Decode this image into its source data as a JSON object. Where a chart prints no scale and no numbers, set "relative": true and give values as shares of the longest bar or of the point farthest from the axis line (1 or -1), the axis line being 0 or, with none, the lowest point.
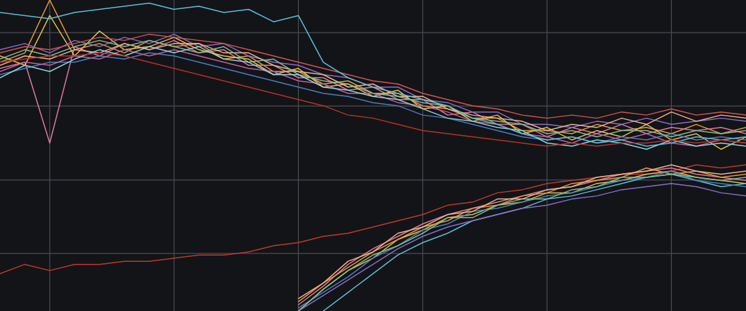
{
  "chart_data": {
    "type": "line",
    "relative": true,
    "grid": true,
    "categories": [
      null,
      null,
      null,
      null,
      null,
      null,
      null,
      null,
      null,
      null,
      null,
      null,
      null,
      null,
      null,
      null,
      null,
      null,
      null,
      null,
      null,
      null,
      null,
      null,
      null,
      null,
      null,
      null,
      null,
      null,
      null
    ],
    "series": [
      {
        "color": "#e89a3c",
        "values": [
          0.8,
          0.83,
          1.0,
          0.84,
          0.86,
          0.83,
          0.87,
          0.85,
          0.86,
          0.81,
          0.82,
          0.77,
          0.77,
          0.73,
          0.74,
          0.7,
          0.7,
          0.66,
          0.65,
          0.62,
          0.62,
          0.58,
          0.58,
          0.57,
          0.6,
          0.58,
          0.59,
          0.57,
          0.6,
          0.57,
          0.59
        ]
      },
      {
        "color": "#e07aa0",
        "values": [
          0.78,
          0.8,
          0.54,
          0.85,
          0.82,
          0.86,
          0.84,
          0.87,
          0.83,
          0.84,
          0.79,
          0.79,
          0.75,
          0.75,
          0.71,
          0.72,
          0.68,
          0.68,
          0.63,
          0.64,
          0.6,
          0.6,
          0.56,
          0.59,
          0.57,
          0.6,
          0.57,
          0.59,
          0.58,
          0.59,
          0.57
        ]
      },
      {
        "color": "#e6c04a",
        "values": [
          0.82,
          0.79,
          0.95,
          0.82,
          0.9,
          0.84,
          0.85,
          0.88,
          0.84,
          0.82,
          0.81,
          0.76,
          0.78,
          0.72,
          0.73,
          0.69,
          0.71,
          0.65,
          0.66,
          0.61,
          0.63,
          0.57,
          0.59,
          0.55,
          0.58,
          0.56,
          0.6,
          0.55,
          0.57,
          0.52,
          0.56
        ]
      },
      {
        "color": "#4a7fc1",
        "values": [
          0.76,
          0.78,
          0.8,
          0.8,
          0.82,
          0.81,
          0.83,
          0.82,
          0.8,
          0.78,
          0.76,
          0.74,
          0.72,
          0.7,
          0.69,
          0.67,
          0.66,
          0.63,
          0.62,
          0.6,
          0.58,
          0.56,
          0.55,
          0.56,
          0.54,
          0.56,
          0.55,
          0.57,
          0.55,
          0.56,
          0.55
        ]
      },
      {
        "color": "#8a6fc9",
        "values": [
          0.84,
          0.86,
          0.83,
          0.87,
          0.85,
          0.88,
          0.86,
          0.89,
          0.85,
          0.86,
          0.82,
          0.8,
          0.79,
          0.76,
          0.75,
          0.72,
          0.72,
          0.68,
          0.67,
          0.64,
          0.64,
          0.6,
          0.6,
          0.59,
          0.61,
          0.6,
          0.62,
          0.6,
          0.61,
          0.62,
          0.61
        ]
      },
      {
        "color": "#f0b48a",
        "values": [
          0.79,
          0.82,
          0.81,
          0.84,
          0.83,
          0.86,
          0.84,
          0.86,
          0.86,
          0.83,
          0.83,
          0.79,
          0.77,
          0.76,
          0.72,
          0.73,
          0.69,
          0.69,
          0.65,
          0.63,
          0.62,
          0.61,
          0.58,
          0.6,
          0.59,
          0.62,
          0.6,
          0.64,
          0.61,
          0.63,
          0.62
        ]
      },
      {
        "color": "#7fbf8f",
        "values": [
          0.81,
          0.84,
          0.82,
          0.85,
          0.87,
          0.85,
          0.87,
          0.85,
          0.83,
          0.85,
          0.8,
          0.81,
          0.76,
          0.74,
          0.73,
          0.7,
          0.69,
          0.67,
          0.66,
          0.62,
          0.61,
          0.6,
          0.57,
          0.58,
          0.56,
          0.58,
          0.58,
          0.56,
          0.58,
          0.57,
          0.58
        ]
      },
      {
        "color": "#c55fa0",
        "values": [
          0.77,
          0.8,
          0.79,
          0.82,
          0.81,
          0.84,
          0.82,
          0.84,
          0.82,
          0.8,
          0.78,
          0.77,
          0.74,
          0.73,
          0.7,
          0.7,
          0.67,
          0.66,
          0.64,
          0.61,
          0.6,
          0.57,
          0.56,
          0.54,
          0.57,
          0.55,
          0.57,
          0.54,
          0.53,
          0.55,
          0.54
        ]
      },
      {
        "color": "#8fd3e0",
        "values": [
          0.75,
          0.79,
          0.77,
          0.81,
          0.84,
          0.82,
          0.85,
          0.83,
          0.85,
          0.81,
          0.8,
          0.76,
          0.76,
          0.72,
          0.71,
          0.69,
          0.68,
          0.65,
          0.62,
          0.61,
          0.59,
          0.58,
          0.54,
          0.53,
          0.55,
          0.54,
          0.52,
          0.55,
          0.53,
          0.54,
          0.53
        ]
      },
      {
        "color": "#d9534f",
        "values": [
          0.83,
          0.85,
          0.84,
          0.86,
          0.88,
          0.87,
          0.89,
          0.88,
          0.87,
          0.86,
          0.84,
          0.82,
          0.8,
          0.78,
          0.76,
          0.74,
          0.73,
          0.7,
          0.68,
          0.66,
          0.65,
          0.63,
          0.62,
          0.63,
          0.62,
          0.64,
          0.63,
          0.65,
          0.63,
          0.64,
          0.63
        ]
      },
      {
        "color": "#5bc0d8",
        "values": [
          0.96,
          0.95,
          0.94,
          0.96,
          0.97,
          0.98,
          0.99,
          0.97,
          0.98,
          0.96,
          0.97,
          0.93,
          0.95,
          0.8,
          0.75,
          0.72,
          0.7,
          0.68,
          0.66,
          0.62,
          0.6,
          0.57,
          0.55,
          0.56,
          0.54,
          0.55,
          0.53,
          0.54,
          0.56,
          0.55,
          0.56
        ]
      },
      {
        "color": "#b83227",
        "values": [
          0.8,
          0.81,
          0.82,
          0.82,
          0.83,
          0.82,
          0.8,
          0.78,
          0.76,
          0.74,
          0.72,
          0.7,
          0.68,
          0.66,
          0.63,
          0.62,
          0.6,
          0.58,
          0.57,
          0.56,
          0.55,
          0.54,
          0.53,
          0.54,
          0.53,
          0.54,
          0.54,
          0.55,
          0.54,
          0.55,
          0.54
        ]
      },
      {
        "color": "#c0392b",
        "values": [
          0.12,
          0.15,
          0.13,
          0.15,
          0.15,
          0.16,
          0.16,
          0.17,
          0.18,
          0.18,
          0.19,
          0.21,
          0.22,
          0.24,
          0.25,
          0.27,
          0.29,
          0.31,
          0.34,
          0.35,
          0.38,
          0.39,
          0.41,
          0.42,
          0.43,
          0.44,
          0.44,
          0.45,
          0.47,
          0.46,
          0.47
        ]
      },
      {
        "color": "#e6c04a",
        "values": [
          null,
          null,
          null,
          null,
          null,
          null,
          null,
          null,
          null,
          null,
          null,
          null,
          0.0,
          0.07,
          0.13,
          0.17,
          0.23,
          0.26,
          0.3,
          0.31,
          0.34,
          0.35,
          0.38,
          0.38,
          0.41,
          0.42,
          0.44,
          0.45,
          0.43,
          0.42,
          0.41
        ]
      },
      {
        "color": "#5bc0d8",
        "values": [
          null,
          null,
          null,
          null,
          null,
          null,
          null,
          null,
          null,
          null,
          null,
          null,
          null,
          0.0,
          0.06,
          0.12,
          0.18,
          0.22,
          0.25,
          0.29,
          0.31,
          0.33,
          0.36,
          0.37,
          0.39,
          0.41,
          0.43,
          0.44,
          0.42,
          0.4,
          0.41
        ]
      },
      {
        "color": "#e07aa0",
        "values": [
          null,
          null,
          null,
          null,
          null,
          null,
          null,
          null,
          null,
          null,
          null,
          null,
          0.02,
          0.08,
          0.15,
          0.2,
          0.24,
          0.28,
          0.31,
          0.33,
          0.35,
          0.37,
          0.39,
          0.4,
          0.42,
          0.44,
          0.45,
          0.46,
          0.44,
          0.43,
          0.42
        ]
      },
      {
        "color": "#8a6fc9",
        "values": [
          null,
          null,
          null,
          null,
          null,
          null,
          null,
          null,
          null,
          null,
          null,
          null,
          0.0,
          0.05,
          0.1,
          0.15,
          0.2,
          0.24,
          0.27,
          0.29,
          0.31,
          0.33,
          0.34,
          0.36,
          0.37,
          0.39,
          0.4,
          0.41,
          0.4,
          0.38,
          0.37
        ]
      },
      {
        "color": "#e89a3c",
        "values": [
          null,
          null,
          null,
          null,
          null,
          null,
          null,
          null,
          null,
          null,
          null,
          null,
          0.03,
          0.09,
          0.14,
          0.19,
          0.23,
          0.27,
          0.29,
          0.33,
          0.34,
          0.37,
          0.38,
          0.41,
          0.42,
          0.43,
          0.46,
          0.44,
          0.45,
          0.43,
          0.44
        ]
      },
      {
        "color": "#4a7fc1",
        "values": [
          null,
          null,
          null,
          null,
          null,
          null,
          null,
          null,
          null,
          null,
          null,
          null,
          0.01,
          0.06,
          0.11,
          0.17,
          0.21,
          0.26,
          0.28,
          0.32,
          0.33,
          0.35,
          0.37,
          0.38,
          0.4,
          0.42,
          0.43,
          0.45,
          0.42,
          0.41,
          0.4
        ]
      },
      {
        "color": "#7fbf8f",
        "values": [
          null,
          null,
          null,
          null,
          null,
          null,
          null,
          null,
          null,
          null,
          null,
          null,
          0.0,
          0.07,
          0.13,
          0.18,
          0.21,
          0.25,
          0.3,
          0.3,
          0.34,
          0.36,
          0.36,
          0.39,
          0.4,
          0.43,
          0.43,
          0.44,
          0.43,
          0.42,
          0.43
        ]
      },
      {
        "color": "#f0b48a",
        "values": [
          null,
          null,
          null,
          null,
          null,
          null,
          null,
          null,
          null,
          null,
          null,
          null,
          0.04,
          0.09,
          0.16,
          0.19,
          0.25,
          0.27,
          0.31,
          0.32,
          0.36,
          0.36,
          0.39,
          0.4,
          0.43,
          0.44,
          0.45,
          0.47,
          0.45,
          0.44,
          0.45
        ]
      }
    ]
  }
}
